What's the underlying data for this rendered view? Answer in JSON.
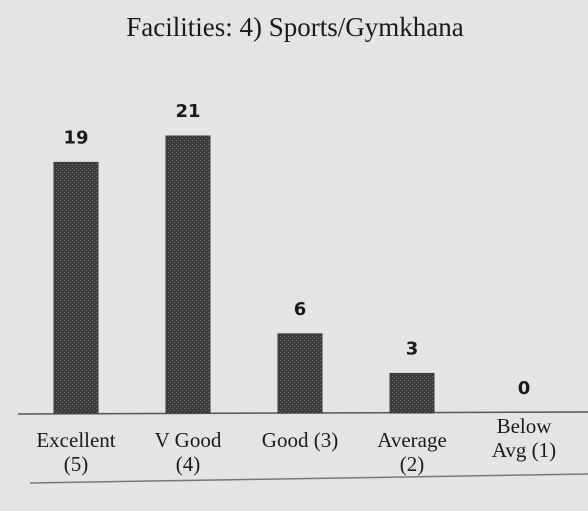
{
  "chart_data": {
    "type": "bar",
    "title": "Facilities: 4) Sports/Gymkhana",
    "categories": [
      [
        "Excellent",
        "(5)"
      ],
      [
        "V Good",
        "(4)"
      ],
      [
        "Good (3)"
      ],
      [
        "Average",
        "(2)"
      ],
      [
        "Below",
        "Avg (1)"
      ]
    ],
    "values": [
      19,
      21,
      6,
      3,
      0
    ],
    "color": "#3b3b3b"
  }
}
